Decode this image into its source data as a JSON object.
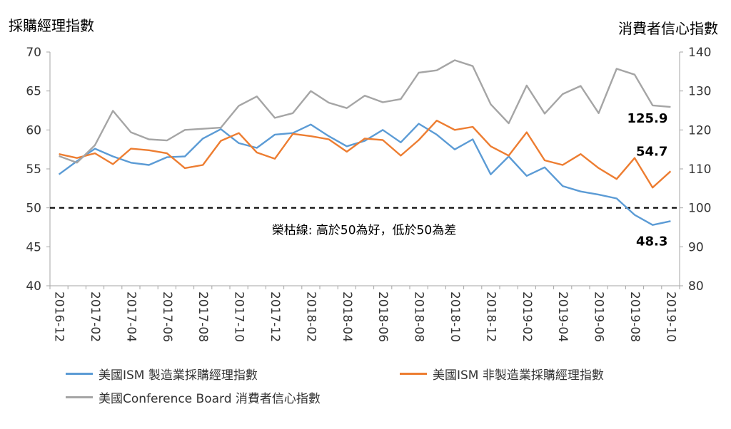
{
  "titles": {
    "left_axis": "採購經理指數",
    "right_axis": "消費者信心指數"
  },
  "chart_data": {
    "type": "line",
    "x": [
      "2016-12",
      "2017-01",
      "2017-02",
      "2017-03",
      "2017-04",
      "2017-05",
      "2017-06",
      "2017-07",
      "2017-08",
      "2017-09",
      "2017-10",
      "2017-11",
      "2017-12",
      "2018-01",
      "2018-02",
      "2018-03",
      "2018-04",
      "2018-05",
      "2018-06",
      "2018-07",
      "2018-08",
      "2018-09",
      "2018-10",
      "2018-11",
      "2018-12",
      "2019-01",
      "2019-02",
      "2019-03",
      "2019-04",
      "2019-05",
      "2019-06",
      "2019-07",
      "2019-08",
      "2019-09",
      "2019-10"
    ],
    "x_tick_labels": [
      "2016-12",
      "2017-02",
      "2017-04",
      "2017-06",
      "2017-08",
      "2017-10",
      "2017-12",
      "2018-02",
      "2018-04",
      "2018-06",
      "2018-08",
      "2018-10",
      "2018-12",
      "2019-02",
      "2019-04",
      "2019-06",
      "2019-08",
      "2019-10"
    ],
    "left_axis": {
      "ylim": [
        40,
        70
      ],
      "ticks": [
        40,
        45,
        50,
        55,
        60,
        65,
        70
      ]
    },
    "right_axis": {
      "ylim": [
        80,
        140
      ],
      "ticks": [
        80,
        90,
        100,
        110,
        120,
        130,
        140
      ]
    },
    "series": [
      {
        "name": "美國ISM 製造業採購經理指數",
        "axis": "left",
        "color": "#5b9bd5",
        "values": [
          54.3,
          56.0,
          57.6,
          56.6,
          55.8,
          55.5,
          56.5,
          56.6,
          58.9,
          60.1,
          58.3,
          57.7,
          59.4,
          59.6,
          60.7,
          59.2,
          57.9,
          58.6,
          60.0,
          58.4,
          60.8,
          59.4,
          57.5,
          58.8,
          54.3,
          56.6,
          54.1,
          55.2,
          52.8,
          52.1,
          51.7,
          51.2,
          49.1,
          47.8,
          48.3
        ]
      },
      {
        "name": "美國ISM 非製造業採購經理指數",
        "axis": "left",
        "color": "#ed7d31",
        "values": [
          56.9,
          56.4,
          57.0,
          55.6,
          57.6,
          57.4,
          57.0,
          55.1,
          55.5,
          58.6,
          59.6,
          57.1,
          56.3,
          59.5,
          59.2,
          58.8,
          57.2,
          58.9,
          58.7,
          56.7,
          58.7,
          61.2,
          60.0,
          60.4,
          57.9,
          56.7,
          59.7,
          56.1,
          55.5,
          56.9,
          55.1,
          53.7,
          56.4,
          52.6,
          54.7
        ]
      },
      {
        "name": "美國Conference Board 消費者信心指數",
        "axis": "right",
        "color": "#a5a5a5",
        "values": [
          113.3,
          111.6,
          116.1,
          124.9,
          119.4,
          117.6,
          117.3,
          120.0,
          120.3,
          120.6,
          126.2,
          128.6,
          123.1,
          124.3,
          130.0,
          127.0,
          125.6,
          128.8,
          127.1,
          127.9,
          134.7,
          135.3,
          137.9,
          136.4,
          126.6,
          121.7,
          131.4,
          124.2,
          129.2,
          131.3,
          124.3,
          135.7,
          134.2,
          126.3,
          125.9
        ]
      }
    ],
    "reference_line": {
      "value": 50,
      "axis": "left",
      "style": "dashed",
      "color": "#000000",
      "label": "榮枯線: 高於50為好，低於50為差"
    },
    "annotations": [
      {
        "text": "125.9",
        "series": 2
      },
      {
        "text": "54.7",
        "series": 1
      },
      {
        "text": "48.3",
        "series": 0
      }
    ],
    "grid": false,
    "legend_placement": "bottom"
  }
}
